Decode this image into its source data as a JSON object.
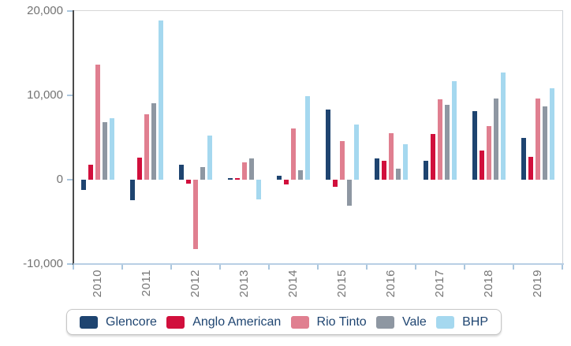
{
  "chart_data": {
    "type": "bar",
    "title": "",
    "xlabel": "",
    "ylabel": "",
    "categories": [
      "2010",
      "2011",
      "2012",
      "2013",
      "2014",
      "2015",
      "2016",
      "2017",
      "2018",
      "2019"
    ],
    "series": [
      {
        "name": "Glencore",
        "color": "#1e4470",
        "values": [
          -1200,
          -2400,
          1800,
          150,
          500,
          8300,
          2500,
          2200,
          8100,
          5000
        ]
      },
      {
        "name": "Anglo American",
        "color": "#d10f3c",
        "values": [
          1800,
          2600,
          -500,
          150,
          -600,
          -800,
          2200,
          5400,
          3500,
          2700
        ]
      },
      {
        "name": "Rio Tinto",
        "color": "#e07f90",
        "values": [
          13600,
          7800,
          -8200,
          2100,
          6100,
          4600,
          5500,
          9500,
          6400,
          9600
        ]
      },
      {
        "name": "Vale",
        "color": "#8e97a2",
        "values": [
          6800,
          9100,
          1500,
          2500,
          1100,
          -3100,
          1300,
          8900,
          9600,
          8700
        ]
      },
      {
        "name": "BHP",
        "color": "#a5d8ef",
        "values": [
          7300,
          18900,
          5200,
          -2300,
          9900,
          6500,
          4200,
          11700,
          12700,
          10800
        ]
      }
    ],
    "ylim": [
      -10000,
      20000
    ],
    "yticks": [
      {
        "value": 20000,
        "label": "20,000"
      },
      {
        "value": 10000,
        "label": "10,000"
      },
      {
        "value": 0,
        "label": "0"
      },
      {
        "value": -10000,
        "label": "-10,000"
      }
    ],
    "grid": false,
    "legend_position": "bottom"
  },
  "colors": {
    "y_axis_line": "#4a4a4a",
    "x_axis_line": "#b9cfe4",
    "tick": "#aac6de",
    "tick_label": "#737373",
    "legend_text": "#1f4571",
    "background": "#ffffff"
  }
}
